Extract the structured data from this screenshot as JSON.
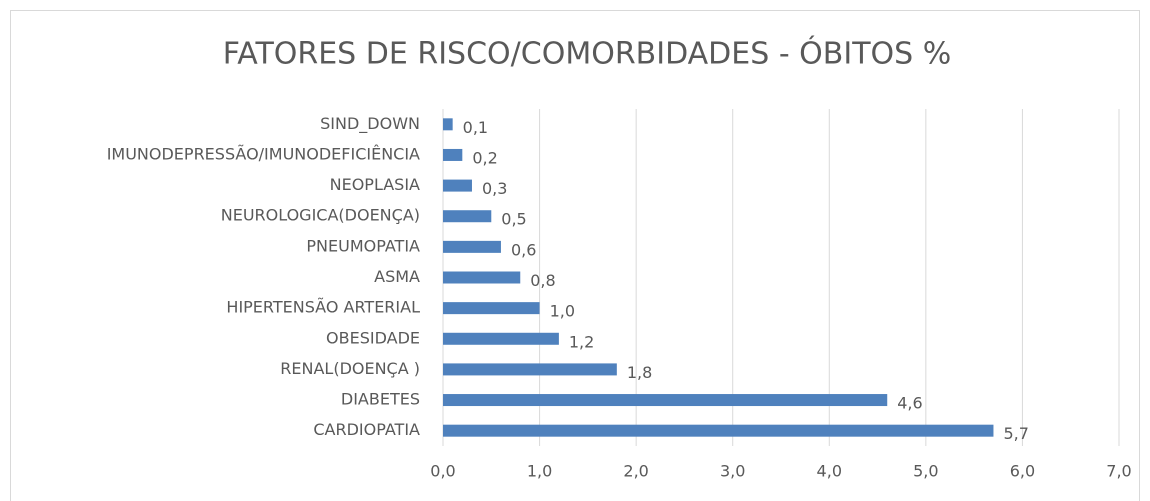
{
  "chart_data": {
    "type": "bar",
    "orientation": "horizontal",
    "title": "FATORES DE RISCO/COMORBIDADES - ÓBITOS %",
    "categories": [
      "SIND_DOWN",
      "IMUNODEPRESSÃO/IMUNODEFICIÊNCIA",
      "NEOPLASIA",
      "NEUROLOGICA(DOENÇA)",
      "PNEUMOPATIA",
      "ASMA",
      "HIPERTENSÃO ARTERIAL",
      "OBESIDADE",
      "RENAL(DOENÇA )",
      "DIABETES",
      "CARDIOPATIA"
    ],
    "values": [
      0.1,
      0.2,
      0.3,
      0.5,
      0.6,
      0.8,
      1.0,
      1.2,
      1.8,
      4.6,
      5.7
    ],
    "value_labels": [
      "0,1",
      "0,2",
      "0,3",
      "0,5",
      "0,6",
      "0,8",
      "1,0",
      "1,2",
      "1,8",
      "4,6",
      "5,7"
    ],
    "color": "#4f81bd",
    "xlim": [
      0,
      7
    ],
    "xticks": [
      {
        "value": 0,
        "label": "0,0"
      },
      {
        "value": 1,
        "label": "1,0"
      },
      {
        "value": 2,
        "label": "2,0"
      },
      {
        "value": 3,
        "label": "3,0"
      },
      {
        "value": 4,
        "label": "4,0"
      },
      {
        "value": 5,
        "label": "5,0"
      },
      {
        "value": 6,
        "label": "6,0"
      },
      {
        "value": 7,
        "label": "7,0"
      }
    ],
    "grid": true
  }
}
